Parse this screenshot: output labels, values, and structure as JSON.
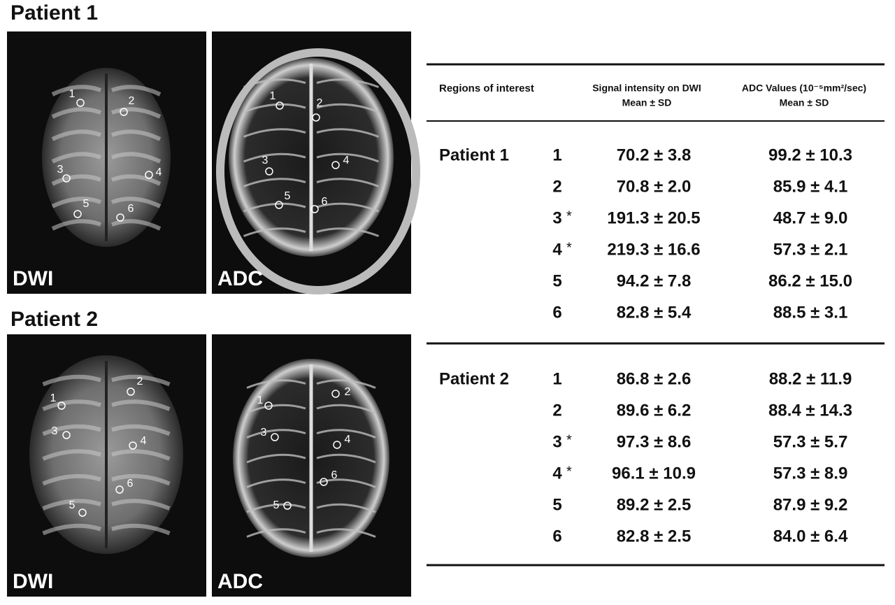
{
  "panels": [
    {
      "title": "Patient 1",
      "images": [
        {
          "label": "DWI",
          "rois": [
            "1",
            "2",
            "3",
            "4",
            "5",
            "6"
          ]
        },
        {
          "label": "ADC",
          "rois": [
            "1",
            "2",
            "3",
            "4",
            "5",
            "6"
          ]
        }
      ]
    },
    {
      "title": "Patient 2",
      "images": [
        {
          "label": "DWI",
          "rois": [
            "1",
            "2",
            "3",
            "4",
            "5",
            "6"
          ]
        },
        {
          "label": "ADC",
          "rois": [
            "1",
            "2",
            "3",
            "4",
            "5",
            "6"
          ]
        }
      ]
    }
  ],
  "table": {
    "headers": [
      "Regions of interest",
      [
        "Signal intensity on DWI",
        "Mean ± SD"
      ],
      [
        "ADC Values (10⁻⁵mm²/sec)",
        "Mean ± SD"
      ]
    ],
    "groups": [
      {
        "patient": "Patient 1",
        "rows": [
          {
            "roi": "1",
            "dwi": "70.2 ± 3.8",
            "adc": "99.2 ± 10.3"
          },
          {
            "roi": "2",
            "dwi": "70.8 ± 2.0",
            "adc": "85.9 ± 4.1"
          },
          {
            "roi": "3",
            "mark": "*",
            "dwi": "191.3 ± 20.5",
            "adc": "48.7 ± 9.0"
          },
          {
            "roi": "4",
            "mark": "*",
            "dwi": "219.3 ± 16.6",
            "adc": "57.3 ± 2.1"
          },
          {
            "roi": "5",
            "dwi": "94.2 ± 7.8",
            "adc": "86.2 ± 15.0"
          },
          {
            "roi": "6",
            "dwi": "82.8 ± 5.4",
            "adc": "88.5 ± 3.1"
          }
        ]
      },
      {
        "patient": "Patient 2",
        "rows": [
          {
            "roi": "1",
            "dwi": "86.8 ± 2.6",
            "adc": "88.2 ± 11.9"
          },
          {
            "roi": "2",
            "dwi": "89.6 ± 6.2",
            "adc": "88.4 ± 14.3"
          },
          {
            "roi": "3",
            "mark": "*",
            "dwi": "97.3 ± 8.6",
            "adc": "57.3 ± 5.7"
          },
          {
            "roi": "4",
            "mark": "*",
            "dwi": "96.1 ± 10.9",
            "adc": "57.3 ± 8.9"
          },
          {
            "roi": "5",
            "dwi": "89.2 ± 2.5",
            "adc": "87.9 ± 9.2"
          },
          {
            "roi": "6",
            "dwi": "82.8 ± 2.5",
            "adc": "84.0 ± 6.4"
          }
        ]
      }
    ]
  }
}
